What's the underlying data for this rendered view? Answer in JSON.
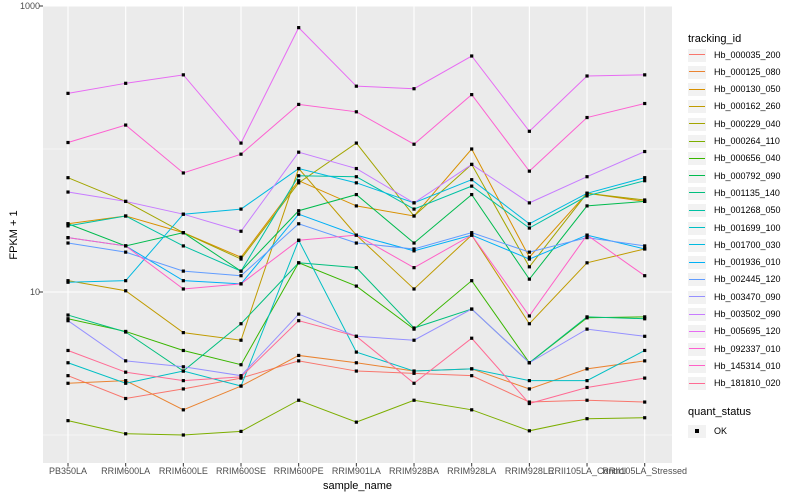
{
  "figure": {
    "y_axis": {
      "title": "FPKM + 1",
      "ticks": [
        {
          "label": "1000",
          "value": 1000
        },
        {
          "label": "10",
          "value": 10
        }
      ],
      "minor_gridlines": [
        100,
        1
      ]
    },
    "x_axis": {
      "title": "sample_name"
    },
    "legend": {
      "tracking_title": "tracking_id",
      "quant_title": "quant_status",
      "quant_items": [
        {
          "label": "OK",
          "marker": "black-square"
        }
      ]
    }
  },
  "chart_data": {
    "type": "line",
    "title": "",
    "xlabel": "sample_name",
    "ylabel": "FPKM + 1",
    "y_scale": "log10",
    "ylim": [
      0.65,
      1000
    ],
    "grid": true,
    "legend_position": "right",
    "panel_background": "#EBEBEB",
    "gridline_color": "#FFFFFF",
    "point_marker": "black-square",
    "point_color": "#000000",
    "categories": [
      "PB350LA",
      "RRIM600LA",
      "RRIM600LE",
      "RRIM600SE",
      "RRIM600PE",
      "RRIM901LA",
      "RRIM928BA",
      "RRIM928LA",
      "RRIM928LE",
      "RRII105LA_Control",
      "RRII105LA_Stressed"
    ],
    "series": [
      {
        "name": "Hb_000035_200",
        "color": "#F8766D",
        "values": [
          2.6,
          1.8,
          2.1,
          2.5,
          3.3,
          2.8,
          2.7,
          2.6,
          1.7,
          1.75,
          1.7
        ]
      },
      {
        "name": "Hb_000125_080",
        "color": "#EA8331",
        "values": [
          2.3,
          2.4,
          1.5,
          2.2,
          3.6,
          3.2,
          2.8,
          2.9,
          2.1,
          2.9,
          3.3
        ]
      },
      {
        "name": "Hb_000130_050",
        "color": "#D89000",
        "values": [
          30,
          34,
          26,
          17.5,
          60,
          40,
          34,
          100,
          17.5,
          49,
          43
        ]
      },
      {
        "name": "Hb_000162_260",
        "color": "#C09B00",
        "values": [
          12,
          10.2,
          5.2,
          4.6,
          73,
          25,
          10.5,
          25,
          6.0,
          16,
          20
        ]
      },
      {
        "name": "Hb_000229_040",
        "color": "#A3A500",
        "values": [
          63,
          43,
          26,
          17,
          58,
          110,
          34,
          78,
          15,
          49,
          44
        ]
      },
      {
        "name": "Hb_000264_110",
        "color": "#7CAE00",
        "values": [
          1.26,
          1.02,
          1.0,
          1.06,
          1.75,
          1.23,
          1.75,
          1.5,
          1.07,
          1.3,
          1.32
        ]
      },
      {
        "name": "Hb_000656_040",
        "color": "#39B600",
        "values": [
          6.5,
          5.3,
          3.9,
          3.1,
          16,
          11,
          5.5,
          12,
          3.2,
          6.6,
          6.7
        ]
      },
      {
        "name": "Hb_000792_090",
        "color": "#00BB4E",
        "values": [
          30,
          21,
          26,
          14,
          37,
          48,
          22,
          48,
          12.3,
          40,
          43
        ]
      },
      {
        "name": "Hb_001135_140",
        "color": "#00BF7D",
        "values": [
          6.9,
          5.25,
          2.8,
          6.0,
          16,
          14.8,
          5.6,
          7.6,
          3.2,
          6.7,
          6.5
        ]
      },
      {
        "name": "Hb_001268_050",
        "color": "#00C1A3",
        "values": [
          29,
          34,
          21,
          14,
          65,
          64,
          38,
          55,
          28,
          47,
          60
        ]
      },
      {
        "name": "Hb_001699_100",
        "color": "#00BFC4",
        "values": [
          3.2,
          2.3,
          2.8,
          2.2,
          23,
          3.8,
          2.8,
          2.9,
          2.4,
          2.4,
          3.9
        ]
      },
      {
        "name": "Hb_001700_030",
        "color": "#00BAE0",
        "values": [
          11.7,
          12,
          35,
          38,
          73,
          58,
          42,
          61,
          30,
          49,
          63
        ]
      },
      {
        "name": "Hb_001936_010",
        "color": "#00B0F6",
        "values": [
          24,
          21,
          12,
          11.4,
          35,
          25,
          19.4,
          25,
          17,
          25,
          20
        ]
      },
      {
        "name": "Hb_002445_120",
        "color": "#619CFF",
        "values": [
          22,
          19,
          14,
          13,
          30,
          22,
          20,
          26,
          19,
          24,
          21
        ]
      },
      {
        "name": "Hb_003470_090",
        "color": "#9590FF",
        "values": [
          6.3,
          3.3,
          3.0,
          2.6,
          7.0,
          4.9,
          4.6,
          7.6,
          3.2,
          5.5,
          4.9
        ]
      },
      {
        "name": "Hb_003502_090",
        "color": "#C77CFF",
        "values": [
          50,
          43,
          35,
          26.6,
          95,
          73,
          42,
          78,
          42,
          64,
          96
        ]
      },
      {
        "name": "Hb_005695_120",
        "color": "#E76BF3",
        "values": [
          245,
          288,
          330,
          110,
          706,
          275,
          264,
          447,
          133,
          324,
          330
        ]
      },
      {
        "name": "Hb_092337_010",
        "color": "#FD61D1",
        "values": [
          111,
          147,
          68,
          92,
          205,
          182,
          108,
          240,
          70,
          166,
          208
        ]
      },
      {
        "name": "Hb_145314_010",
        "color": "#FF61C7",
        "values": [
          24,
          21,
          10.5,
          11.4,
          23,
          25,
          14.8,
          25,
          6.8,
          25,
          13
        ]
      },
      {
        "name": "Hb_181810_020",
        "color": "#FF6B94",
        "values": [
          3.9,
          2.75,
          2.4,
          2.55,
          6.3,
          4.9,
          2.3,
          4.75,
          1.66,
          2.15,
          2.5
        ]
      }
    ]
  }
}
